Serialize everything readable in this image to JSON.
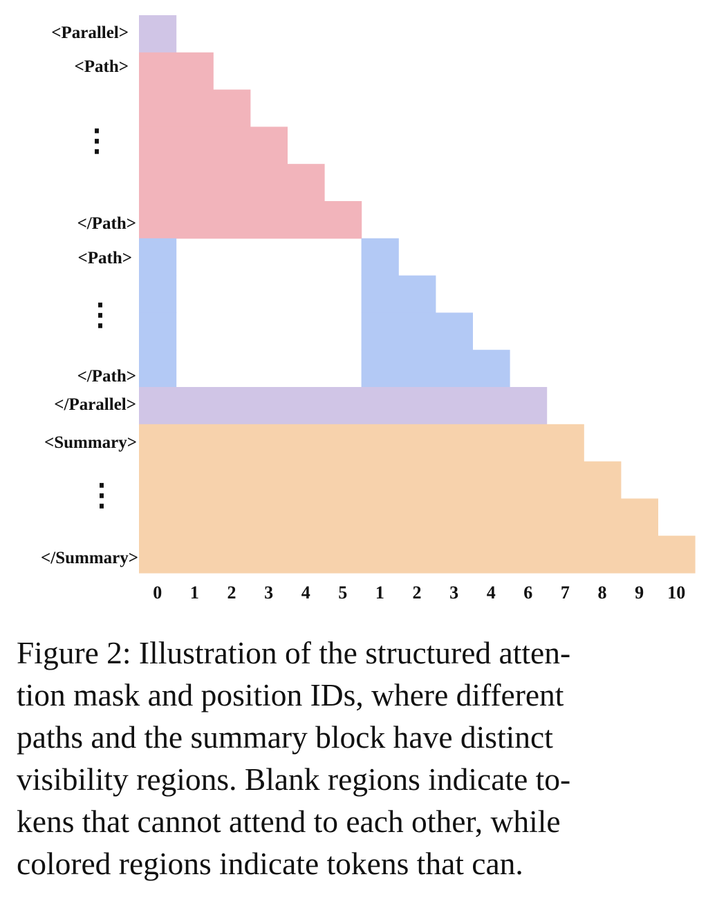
{
  "colors": {
    "parallel": "#d0c5e6",
    "path_a": "#f2b4bb",
    "path_b": "#b3c9f5",
    "summary": "#f7d2ac",
    "text": "#111111"
  },
  "row_labels": {
    "parallel_open": "<Parallel>",
    "path1_open": "<Path>",
    "path1_dots": "⋮",
    "path1_close": "</Path>",
    "path2_open": "<Path>",
    "path2_dots": "⋮",
    "path2_close": "</Path>",
    "parallel_close": "</Parallel>",
    "summary_open": "<Summary>",
    "summary_dots": "⋮",
    "summary_close": "</Summary>"
  },
  "position_ids": [
    "0",
    "1",
    "2",
    "3",
    "4",
    "5",
    "1",
    "2",
    "3",
    "4",
    "6",
    "7",
    "8",
    "9",
    "10"
  ],
  "regions": [
    {
      "name": "parallel-open-block",
      "color_key": "parallel",
      "rows": [
        0,
        1
      ],
      "cols": [
        0,
        1
      ]
    },
    {
      "name": "path-a-triangle",
      "color_key": "path_a",
      "rows": [
        1,
        6
      ],
      "cols": [
        0,
        "row+1"
      ]
    },
    {
      "name": "path-b-prefix-column",
      "color_key": "path_b",
      "rows": [
        6,
        10
      ],
      "cols": [
        0,
        1
      ]
    },
    {
      "name": "path-b-triangle",
      "color_key": "path_b",
      "rows": [
        6,
        10
      ],
      "cols": [
        6,
        "row+1"
      ]
    },
    {
      "name": "parallel-close-row",
      "color_key": "parallel",
      "rows": [
        10,
        11
      ],
      "cols": [
        0,
        11
      ]
    },
    {
      "name": "summary-triangle",
      "color_key": "summary",
      "rows": [
        11,
        15
      ],
      "cols": [
        0,
        "row+1"
      ]
    }
  ],
  "caption": {
    "lines": [
      "Figure 2: Illustration of the structured atten-",
      "tion mask and position IDs, where different",
      "paths and the summary block have distinct",
      "visibility regions. Blank regions indicate to-",
      "kens that cannot attend to each other, while",
      "colored regions indicate tokens that can."
    ]
  }
}
